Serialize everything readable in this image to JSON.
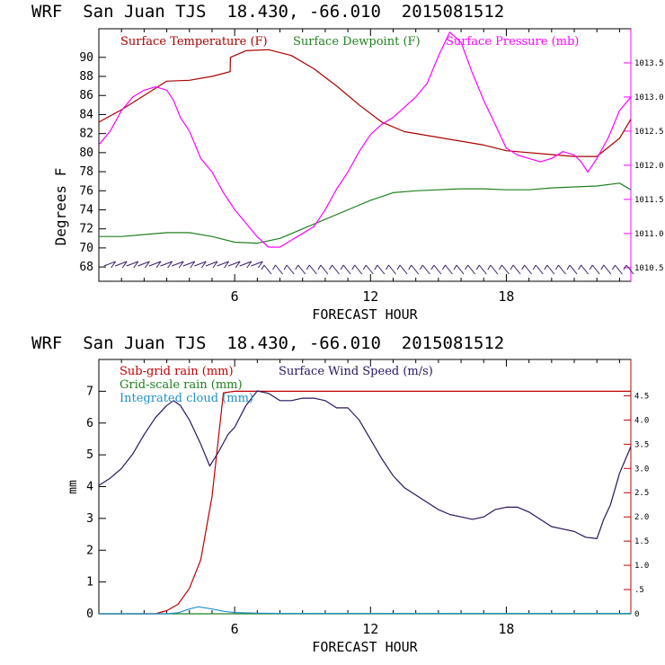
{
  "chart_data": [
    {
      "type": "line",
      "title": "WRF  San Juan TJS  18.430, -66.010  2015081512",
      "xlabel": "FORECAST HOUR",
      "ylabel": "Degrees F",
      "xlim": [
        0,
        23.5
      ],
      "ylim": [
        66.5,
        93
      ],
      "y2lim": [
        1010.3,
        1014.0
      ],
      "x_ticks": [
        "6",
        "12",
        "18"
      ],
      "y_ticks": [
        "68",
        "70",
        "72",
        "74",
        "76",
        "78",
        "80",
        "82",
        "84",
        "86",
        "88",
        "90"
      ],
      "y2_ticks": [
        "1010.5",
        "1011.0",
        "1011.5",
        "1012.0",
        "1012.5",
        "1013.0",
        "1013.5"
      ],
      "grid": false,
      "wind_barbs": "row of wind barbs along bottom of panel",
      "series": [
        {
          "name": "Surface Temperature (F)",
          "color": "#a80000",
          "axis": "left",
          "x": [
            0,
            1,
            2,
            3,
            4,
            5,
            5.8,
            5.81,
            6.5,
            7.5,
            8.5,
            9.5,
            10.5,
            11.5,
            12.5,
            13.5,
            15,
            17,
            18,
            20,
            21,
            22,
            23,
            23.5
          ],
          "y": [
            83.2,
            84.5,
            86,
            87.5,
            87.6,
            88,
            88.5,
            90,
            90.7,
            90.8,
            90.2,
            88.8,
            87,
            85,
            83.2,
            82.2,
            81.6,
            80.8,
            80.2,
            79.8,
            79.6,
            79.6,
            81.5,
            83.5
          ]
        },
        {
          "name": "Surface Dewpoint (F)",
          "color": "#208020",
          "axis": "left",
          "x": [
            0,
            1,
            2,
            3,
            4,
            5,
            6,
            7,
            8,
            9,
            10,
            11,
            12,
            13,
            14,
            15,
            16,
            17,
            18,
            19,
            20,
            21,
            22,
            23,
            23.5
          ],
          "y": [
            71.2,
            71.2,
            71.4,
            71.6,
            71.6,
            71.2,
            70.6,
            70.5,
            71,
            72,
            73,
            74,
            75,
            75.8,
            76,
            76.1,
            76.2,
            76.2,
            76.1,
            76.1,
            76.3,
            76.4,
            76.5,
            76.8,
            76.1
          ]
        },
        {
          "name": "Surface Pressure (mb)",
          "color": "#ff00ff",
          "axis": "right",
          "x": [
            0,
            0.5,
            1,
            1.5,
            2,
            2.5,
            3,
            3.3,
            3.6,
            4,
            4.5,
            5,
            5.5,
            6,
            6.5,
            7,
            7.5,
            8,
            8.5,
            9,
            9.5,
            10,
            10.5,
            11,
            11.5,
            12,
            12.5,
            13,
            13.5,
            14,
            14.5,
            15,
            15.5,
            16,
            16.5,
            17,
            17.5,
            18,
            18.5,
            19,
            19.5,
            20,
            20.5,
            21,
            21.3,
            21.6,
            22,
            22.5,
            23,
            23.5
          ],
          "y": [
            1012.3,
            1012.5,
            1012.8,
            1013.0,
            1013.1,
            1013.15,
            1013.1,
            1012.95,
            1012.7,
            1012.5,
            1012.1,
            1011.9,
            1011.6,
            1011.35,
            1011.15,
            1010.95,
            1010.8,
            1010.8,
            1010.9,
            1011.0,
            1011.1,
            1011.35,
            1011.65,
            1011.9,
            1012.2,
            1012.45,
            1012.6,
            1012.7,
            1012.85,
            1013.0,
            1013.2,
            1013.6,
            1013.95,
            1013.8,
            1013.35,
            1012.95,
            1012.6,
            1012.25,
            1012.15,
            1012.1,
            1012.05,
            1012.1,
            1012.2,
            1012.15,
            1012.05,
            1011.9,
            1012.1,
            1012.4,
            1012.8,
            1013.0
          ]
        }
      ]
    },
    {
      "type": "line",
      "title": "WRF  San Juan TJS  18.430, -66.010  2015081512",
      "xlabel": "FORECAST HOUR",
      "ylabel": "mm",
      "xlim": [
        0,
        23.5
      ],
      "ylim": [
        0,
        8
      ],
      "y2lim": [
        0,
        5.25
      ],
      "x_ticks": [
        "6",
        "12",
        "18"
      ],
      "y_ticks": [
        "0",
        "1",
        "2",
        "3",
        "4",
        "5",
        "6",
        "7"
      ],
      "y2_ticks": [
        "0",
        ".5",
        "1.0",
        "1.5",
        "2.0",
        "2.5",
        "3.0",
        "3.5",
        "4.0",
        "4.5"
      ],
      "grid": false,
      "series": [
        {
          "name": "Sub-grid rain (mm)",
          "color": "#c00000",
          "axis": "left",
          "x": [
            0,
            2.5,
            3,
            3.5,
            4,
            4.5,
            5,
            5.5,
            6,
            8,
            12,
            18,
            23.5
          ],
          "y": [
            0,
            0,
            0.1,
            0.3,
            0.8,
            1.7,
            3.7,
            6.95,
            7.0,
            7.0,
            7.0,
            7.0,
            7.0
          ]
        },
        {
          "name": "Grid-scale rain (mm)",
          "color": "#208020",
          "axis": "left",
          "x": [
            0,
            23.5
          ],
          "y": [
            0,
            0
          ]
        },
        {
          "name": "Integrated cloud (mm)",
          "color": "#1e90c8",
          "axis": "left",
          "x": [
            0,
            3,
            3.5,
            4,
            4.4,
            5,
            5.5,
            6,
            7,
            8,
            10,
            12,
            23.5
          ],
          "y": [
            0,
            0,
            0.03,
            0.15,
            0.22,
            0.15,
            0.08,
            0.04,
            0.02,
            0.01,
            0.01,
            0.01,
            0.01
          ]
        },
        {
          "name": "Surface Wind Speed (m/s)",
          "color": "#2a1460",
          "axis": "right",
          "x": [
            0,
            0.5,
            1,
            1.5,
            2,
            2.5,
            3,
            3.3,
            3.6,
            4,
            4.5,
            4.9,
            5.3,
            5.7,
            6,
            6.5,
            7,
            7.5,
            8,
            8.5,
            9,
            9.5,
            10,
            10.5,
            11,
            11.5,
            12,
            12.5,
            13,
            13.5,
            14,
            14.5,
            15,
            15.5,
            16,
            16.5,
            17,
            17.5,
            18,
            18.5,
            19,
            19.5,
            20,
            20.5,
            21,
            21.5,
            22,
            22.3,
            22.6,
            23,
            23.5
          ],
          "y": [
            2.65,
            2.8,
            3.0,
            3.3,
            3.7,
            4.05,
            4.3,
            4.4,
            4.3,
            4.0,
            3.5,
            3.05,
            3.35,
            3.7,
            3.85,
            4.3,
            4.6,
            4.55,
            4.4,
            4.4,
            4.45,
            4.45,
            4.4,
            4.25,
            4.25,
            4.0,
            3.6,
            3.2,
            2.85,
            2.6,
            2.45,
            2.3,
            2.15,
            2.05,
            2.0,
            1.95,
            2.0,
            2.15,
            2.2,
            2.2,
            2.1,
            1.95,
            1.8,
            1.75,
            1.7,
            1.58,
            1.55,
            1.95,
            2.25,
            2.9,
            3.45
          ]
        }
      ]
    }
  ]
}
